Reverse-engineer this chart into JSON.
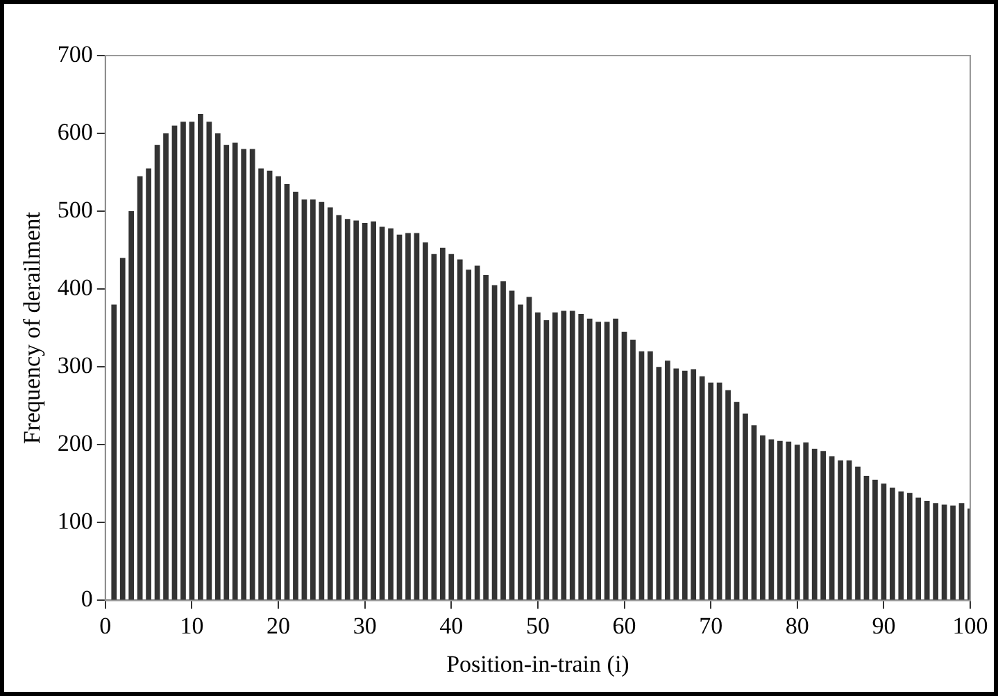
{
  "chart_data": {
    "type": "bar",
    "xlabel": "Position-in-train (i)",
    "ylabel": "Frequency of derailment",
    "color": "#333333",
    "x": [
      1,
      2,
      3,
      4,
      5,
      6,
      7,
      8,
      9,
      10,
      11,
      12,
      13,
      14,
      15,
      16,
      17,
      18,
      19,
      20,
      21,
      22,
      23,
      24,
      25,
      26,
      27,
      28,
      29,
      30,
      31,
      32,
      33,
      34,
      35,
      36,
      37,
      38,
      39,
      40,
      41,
      42,
      43,
      44,
      45,
      46,
      47,
      48,
      49,
      50,
      51,
      52,
      53,
      54,
      55,
      56,
      57,
      58,
      59,
      60,
      61,
      62,
      63,
      64,
      65,
      66,
      67,
      68,
      69,
      70,
      71,
      72,
      73,
      74,
      75,
      76,
      77,
      78,
      79,
      80,
      81,
      82,
      83,
      84,
      85,
      86,
      87,
      88,
      89,
      90,
      91,
      92,
      93,
      94,
      95,
      96,
      97,
      98,
      99,
      100
    ],
    "values": [
      380,
      440,
      500,
      545,
      555,
      585,
      600,
      610,
      615,
      615,
      625,
      615,
      600,
      585,
      588,
      580,
      580,
      555,
      552,
      545,
      535,
      525,
      515,
      515,
      512,
      505,
      495,
      490,
      488,
      485,
      487,
      480,
      478,
      470,
      472,
      472,
      460,
      445,
      453,
      445,
      438,
      425,
      430,
      418,
      405,
      410,
      398,
      380,
      390,
      370,
      360,
      370,
      372,
      372,
      368,
      362,
      358,
      358,
      362,
      345,
      335,
      320,
      320,
      300,
      308,
      298,
      295,
      297,
      288,
      280,
      280,
      270,
      255,
      240,
      225,
      212,
      207,
      205,
      204,
      200,
      203,
      195,
      192,
      185,
      180,
      180,
      172,
      160,
      155,
      150,
      145,
      140,
      138,
      132,
      128,
      125,
      123,
      122,
      125,
      118
    ],
    "xlim": [
      0,
      100
    ],
    "xticks": [
      0,
      10,
      20,
      30,
      40,
      50,
      60,
      70,
      80,
      90,
      100
    ],
    "ylim": [
      0,
      700
    ],
    "yticks": [
      0,
      100,
      200,
      300,
      400,
      500,
      600,
      700
    ],
    "grid": false,
    "legend": false
  }
}
